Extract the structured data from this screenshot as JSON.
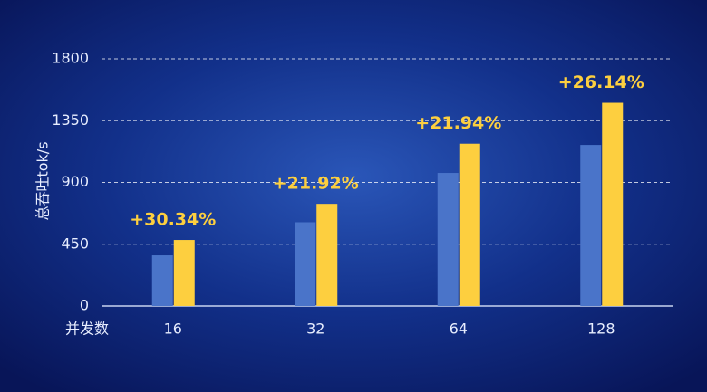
{
  "chart_data": {
    "type": "bar",
    "ylabel": "总吞吐tok/s",
    "xlabel": "并发数",
    "categories": [
      "16",
      "32",
      "64",
      "128"
    ],
    "series": [
      {
        "color": "#4a74c9",
        "values": [
          369,
          610,
          969,
          1173
        ]
      },
      {
        "color": "#fdcf3f",
        "values": [
          481,
          744,
          1182,
          1480
        ]
      }
    ],
    "annotations": [
      "+30.34%",
      "+21.92%",
      "+21.94%",
      "+26.14%"
    ],
    "ylim": [
      0,
      1800
    ],
    "yticks": [
      0,
      450,
      900,
      1350,
      1800
    ],
    "grid": true
  }
}
